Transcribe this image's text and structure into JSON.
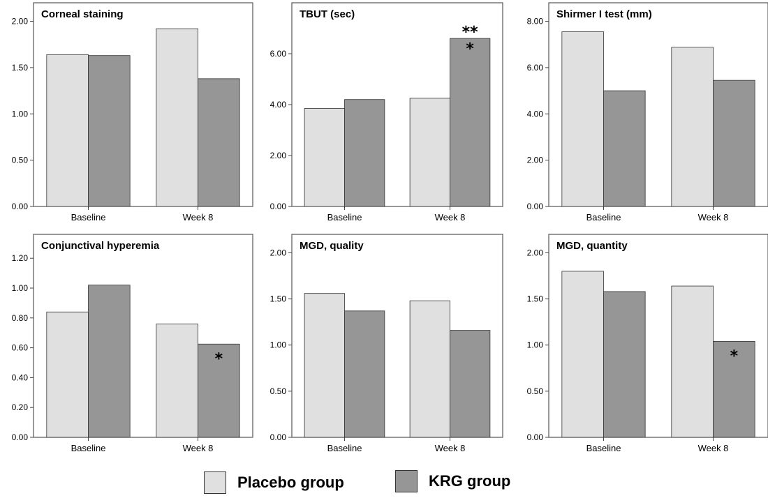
{
  "colors": {
    "placebo": "#e0e0e0",
    "krg": "#969696",
    "axis": "#444444",
    "frame": "#555555"
  },
  "legend": [
    {
      "label": "Placebo group",
      "color": "#e0e0e0"
    },
    {
      "label": "KRG group",
      "color": "#969696"
    }
  ],
  "chart_data": [
    {
      "type": "bar",
      "title": "Corneal staining",
      "categories": [
        "Baseline",
        "Week 8"
      ],
      "series": [
        {
          "name": "Placebo group",
          "values": [
            1.64,
            1.92
          ]
        },
        {
          "name": "KRG group",
          "values": [
            1.63,
            1.38
          ]
        }
      ],
      "ylim": [
        0,
        2.2
      ],
      "yticks": [
        "0.00",
        "0.50",
        "1.00",
        "1.50",
        "2.00"
      ],
      "annotations": []
    },
    {
      "type": "bar",
      "title": "TBUT (sec)",
      "categories": [
        "Baseline",
        "Week 8"
      ],
      "series": [
        {
          "name": "Placebo group",
          "values": [
            3.85,
            4.25
          ]
        },
        {
          "name": "KRG group",
          "values": [
            4.2,
            6.6
          ]
        }
      ],
      "ylim": [
        0,
        8.0
      ],
      "yticks": [
        "0.00",
        "2.00",
        "4.00",
        "6.00"
      ],
      "annotations": [
        {
          "series": 1,
          "category": 1,
          "text": "**"
        },
        {
          "series": 1,
          "category": 1,
          "text": "*"
        }
      ]
    },
    {
      "type": "bar",
      "title": "Shirmer I test (mm)",
      "categories": [
        "Baseline",
        "Week 8"
      ],
      "series": [
        {
          "name": "Placebo group",
          "values": [
            7.55,
            6.88
          ]
        },
        {
          "name": "KRG group",
          "values": [
            5.0,
            5.45
          ]
        }
      ],
      "ylim": [
        0,
        8.8
      ],
      "yticks": [
        "0.00",
        "2.00",
        "4.00",
        "6.00",
        "8.00"
      ],
      "annotations": []
    },
    {
      "type": "bar",
      "title": "Conjunctival hyperemia",
      "categories": [
        "Baseline",
        "Week 8"
      ],
      "series": [
        {
          "name": "Placebo group",
          "values": [
            0.84,
            0.76
          ]
        },
        {
          "name": "KRG group",
          "values": [
            1.02,
            0.625
          ]
        }
      ],
      "ylim": [
        0,
        1.36
      ],
      "yticks": [
        "0.00",
        "0.20",
        "0.40",
        "0.60",
        "0.80",
        "1.00",
        "1.20"
      ],
      "annotations": [
        {
          "series": 1,
          "category": 1,
          "text": "*"
        }
      ]
    },
    {
      "type": "bar",
      "title": "MGD, quality",
      "categories": [
        "Baseline",
        "Week 8"
      ],
      "series": [
        {
          "name": "Placebo group",
          "values": [
            1.56,
            1.48
          ]
        },
        {
          "name": "KRG group",
          "values": [
            1.37,
            1.16
          ]
        }
      ],
      "ylim": [
        0,
        2.2
      ],
      "yticks": [
        "0.00",
        "0.50",
        "1.00",
        "1.50",
        "2.00"
      ],
      "annotations": []
    },
    {
      "type": "bar",
      "title": "MGD, quantity",
      "categories": [
        "Baseline",
        "Week 8"
      ],
      "series": [
        {
          "name": "Placebo group",
          "values": [
            1.8,
            1.64
          ]
        },
        {
          "name": "KRG group",
          "values": [
            1.58,
            1.04
          ]
        }
      ],
      "ylim": [
        0,
        2.2
      ],
      "yticks": [
        "0.00",
        "0.50",
        "1.00",
        "1.50",
        "2.00"
      ],
      "annotations": [
        {
          "series": 1,
          "category": 1,
          "text": "*"
        }
      ]
    }
  ]
}
